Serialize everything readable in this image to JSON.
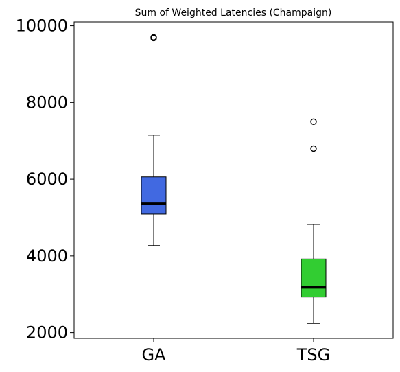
{
  "chart_data": {
    "type": "boxplot",
    "title": "Sum of Weighted Latencies (Champaign)",
    "xlabel": "",
    "ylabel": "",
    "categories": [
      "GA",
      "TSG"
    ],
    "ylim": [
      1850,
      10100
    ],
    "yticks": [
      2000,
      4000,
      6000,
      8000,
      10000
    ],
    "ytick_labels": [
      "2000",
      "4000",
      "6000",
      "8000",
      "10000"
    ],
    "grid": false,
    "legend": "none",
    "boxes": [
      {
        "category": "GA",
        "color": "#4169e1",
        "whisker_low": 4270,
        "q1": 5090,
        "median": 5360,
        "q3": 6060,
        "whisker_high": 7150,
        "outliers": [
          9680,
          9700
        ]
      },
      {
        "category": "TSG",
        "color": "#32cd32",
        "whisker_low": 2240,
        "q1": 2930,
        "median": 3180,
        "q3": 3920,
        "whisker_high": 4820,
        "outliers": [
          6800,
          7500
        ]
      }
    ]
  }
}
